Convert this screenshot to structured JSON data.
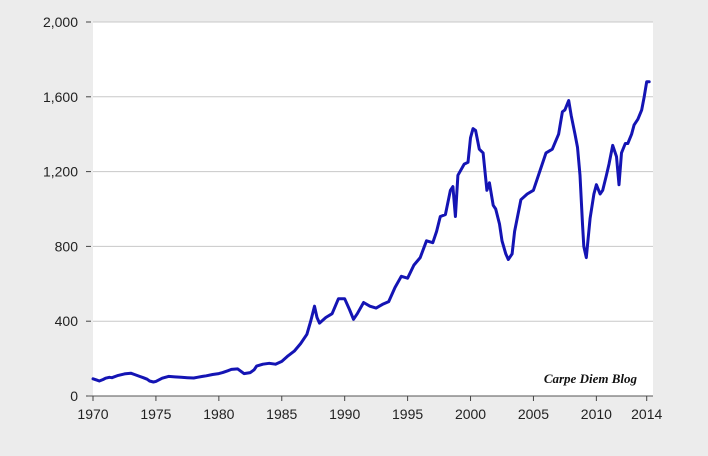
{
  "chart_data": {
    "type": "line",
    "title": "",
    "xlabel": "",
    "ylabel": "",
    "xlim": [
      1970,
      2014.5
    ],
    "ylim": [
      0,
      2000
    ],
    "x_ticks": [
      "1970",
      "1975",
      "1980",
      "1985",
      "1990",
      "1995",
      "2000",
      "2005",
      "2010",
      "2014"
    ],
    "y_ticks": [
      "0",
      "400",
      "800",
      "1,200",
      "1,600",
      "2,000"
    ],
    "grid": true,
    "legend": "none",
    "annotation": "Carpe Diem Blog",
    "series": [
      {
        "color": "#1414b4",
        "x": [
          1970.0,
          1970.3,
          1970.5,
          1970.8,
          1971.0,
          1971.3,
          1971.5,
          1972.0,
          1972.5,
          1973.0,
          1973.3,
          1973.7,
          1974.0,
          1974.3,
          1974.5,
          1974.8,
          1975.0,
          1975.5,
          1976.0,
          1976.5,
          1977.0,
          1977.5,
          1978.0,
          1978.3,
          1978.7,
          1979.0,
          1979.5,
          1980.0,
          1980.3,
          1980.7,
          1981.0,
          1981.5,
          1982.0,
          1982.5,
          1982.8,
          1983.0,
          1983.5,
          1984.0,
          1984.5,
          1985.0,
          1985.5,
          1986.0,
          1986.5,
          1987.0,
          1987.3,
          1987.6,
          1987.8,
          1988.0,
          1988.5,
          1989.0,
          1989.5,
          1990.0,
          1990.4,
          1990.7,
          1991.0,
          1991.5,
          1992.0,
          1992.5,
          1993.0,
          1993.5,
          1994.0,
          1994.5,
          1995.0,
          1995.5,
          1996.0,
          1996.5,
          1997.0,
          1997.3,
          1997.6,
          1998.0,
          1998.4,
          1998.6,
          1998.8,
          1999.0,
          1999.5,
          1999.8,
          2000.0,
          2000.2,
          2000.4,
          2000.7,
          2001.0,
          2001.3,
          2001.5,
          2001.8,
          2002.0,
          2002.3,
          2002.5,
          2002.8,
          2003.0,
          2003.3,
          2003.5,
          2004.0,
          2004.5,
          2005.0,
          2005.5,
          2006.0,
          2006.5,
          2007.0,
          2007.3,
          2007.5,
          2007.8,
          2008.0,
          2008.3,
          2008.5,
          2008.7,
          2008.9,
          2009.0,
          2009.2,
          2009.5,
          2009.8,
          2010.0,
          2010.3,
          2010.5,
          2010.8,
          2011.0,
          2011.3,
          2011.6,
          2011.8,
          2012.0,
          2012.3,
          2012.5,
          2012.8,
          2013.0,
          2013.3,
          2013.6,
          2013.8,
          2014.0,
          2014.2
        ],
        "values": [
          92,
          85,
          80,
          88,
          95,
          100,
          98,
          110,
          118,
          122,
          115,
          105,
          98,
          90,
          80,
          75,
          78,
          95,
          105,
          102,
          100,
          98,
          96,
          100,
          105,
          108,
          115,
          120,
          125,
          135,
          142,
          145,
          120,
          125,
          140,
          160,
          170,
          175,
          170,
          185,
          215,
          240,
          280,
          330,
          400,
          480,
          420,
          390,
          420,
          440,
          520,
          520,
          460,
          410,
          440,
          500,
          480,
          470,
          490,
          505,
          580,
          640,
          630,
          700,
          740,
          830,
          820,
          880,
          960,
          970,
          1100,
          1120,
          960,
          1180,
          1240,
          1250,
          1380,
          1430,
          1420,
          1320,
          1300,
          1100,
          1140,
          1020,
          1000,
          920,
          830,
          760,
          730,
          760,
          880,
          1050,
          1080,
          1100,
          1200,
          1300,
          1320,
          1400,
          1520,
          1530,
          1580,
          1500,
          1400,
          1330,
          1180,
          920,
          800,
          740,
          950,
          1080,
          1130,
          1080,
          1100,
          1180,
          1240,
          1340,
          1280,
          1130,
          1300,
          1350,
          1350,
          1400,
          1450,
          1480,
          1530,
          1600,
          1680,
          1680
        ]
      }
    ]
  }
}
